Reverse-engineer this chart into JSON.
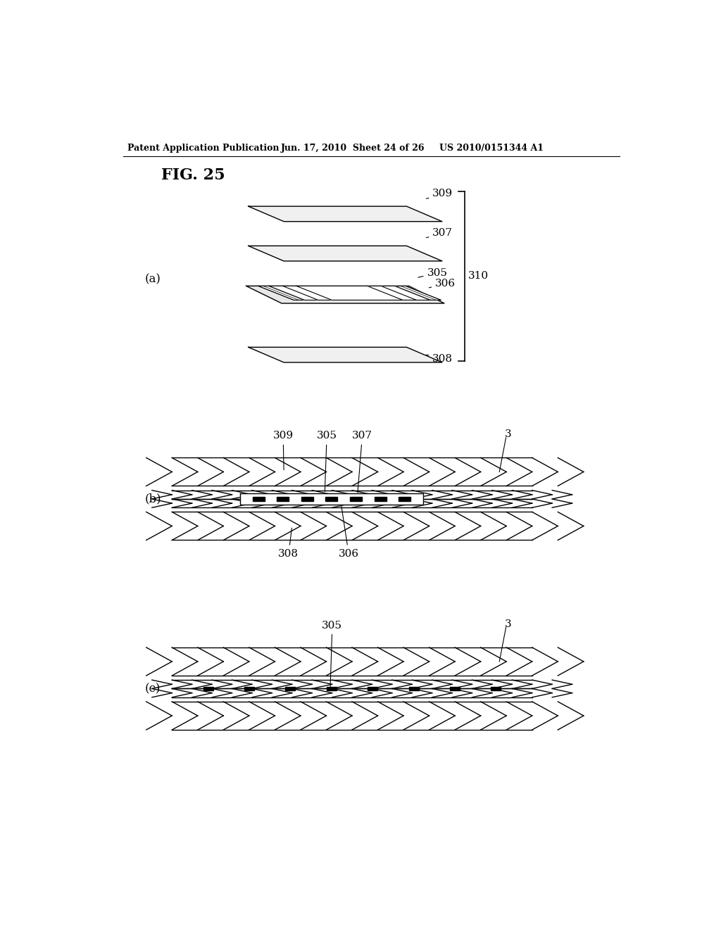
{
  "bg_color": "#ffffff",
  "title_text": "FIG. 25",
  "header_left": "Patent Application Publication",
  "header_mid": "Jun. 17, 2010  Sheet 24 of 26",
  "header_right": "US 2010/0151344 A1",
  "label_a": "(a)",
  "label_b": "(b)",
  "label_c": "(c)",
  "line_color": "#000000"
}
